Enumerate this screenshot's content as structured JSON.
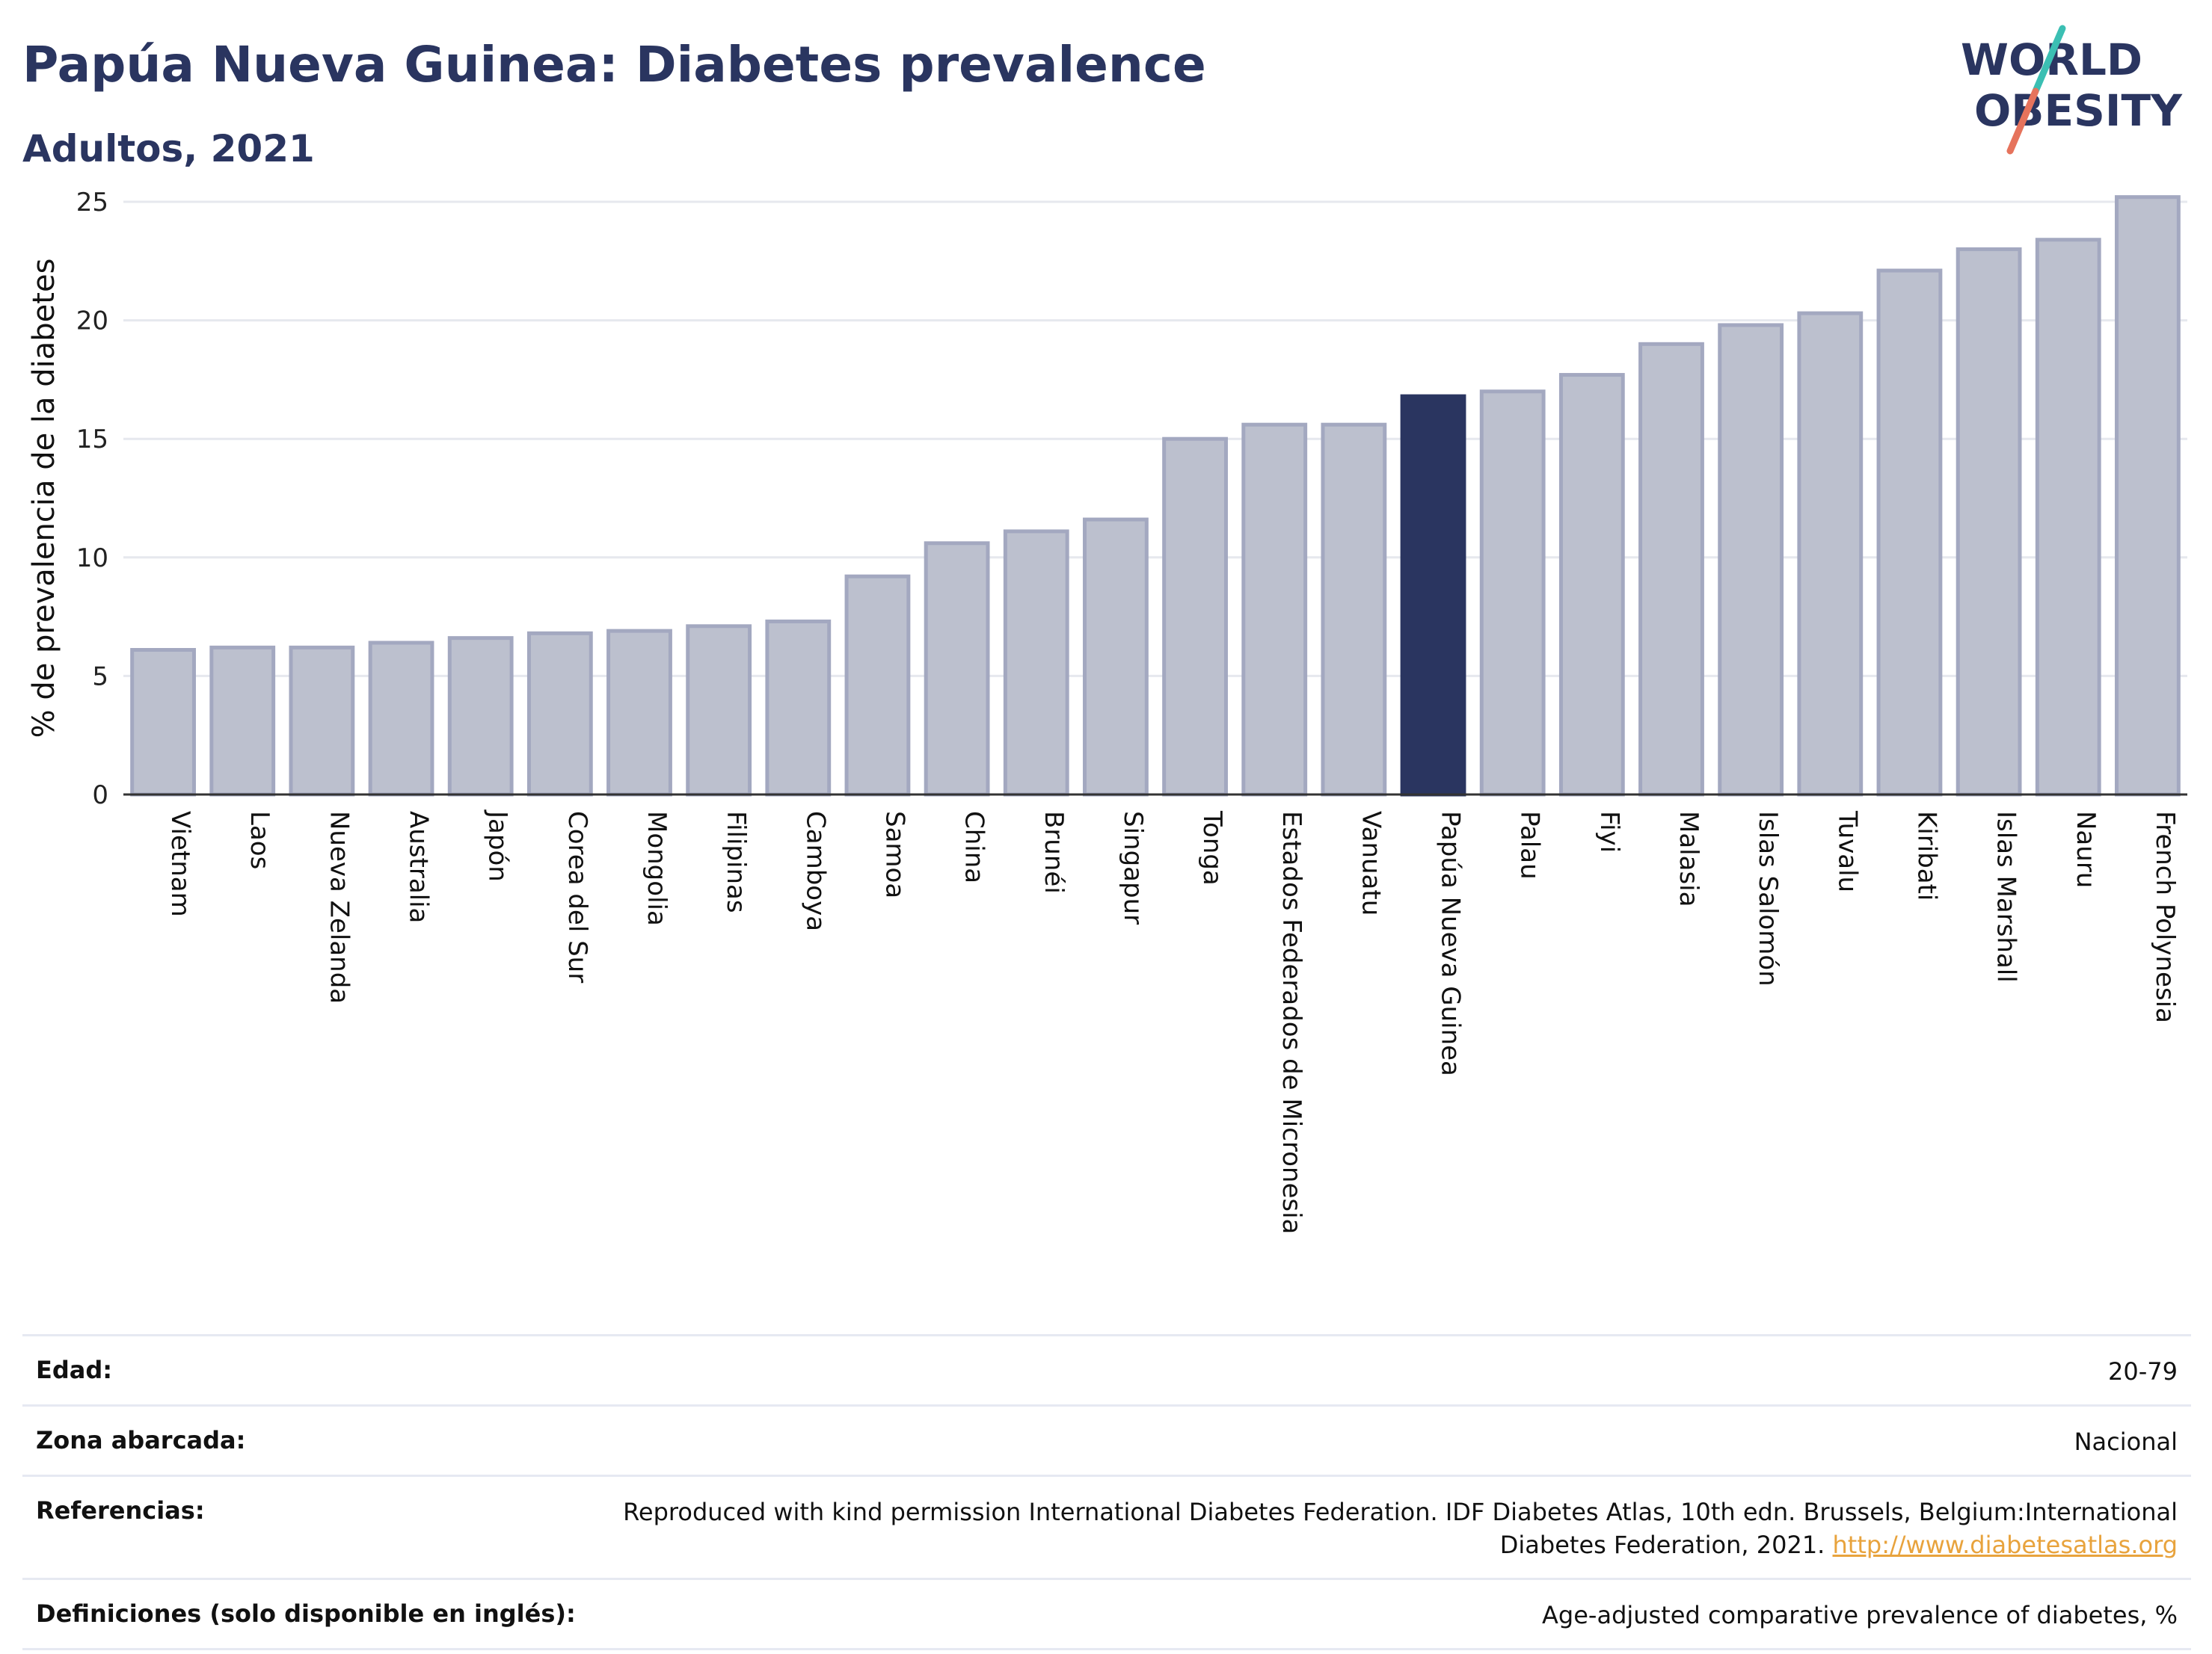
{
  "header": {
    "title": "Papúa Nueva Guinea: Diabetes prevalence",
    "subtitle": "Adultos, 2021"
  },
  "logo": {
    "line1": "WORLD",
    "line2": "OBESITY",
    "slash_colors": [
      "#3bbfb3",
      "#e6735c"
    ]
  },
  "colors": {
    "highlight": "#2a3560",
    "bar": "#bcc0ce",
    "bar_stroke": "#a3a8c0",
    "grid": "#e6e8ee",
    "title": "#2a3560"
  },
  "chart_data": {
    "type": "bar",
    "title": "Papúa Nueva Guinea: Diabetes prevalence",
    "subtitle": "Adultos, 2021",
    "ylabel": "% de prevalencia de la diabetes",
    "xlabel": "",
    "ylim": [
      0,
      25
    ],
    "yticks": [
      0,
      5,
      10,
      15,
      20,
      25
    ],
    "grid": true,
    "highlight": "Papúa Nueva Guinea",
    "categories": [
      "Vietnam",
      "Laos",
      "Nueva Zelanda",
      "Australia",
      "Japón",
      "Corea del Sur",
      "Mongolia",
      "Filipinas",
      "Camboya",
      "Samoa",
      "China",
      "Brunéi",
      "Singapur",
      "Tonga",
      "Estados Federados de Micronesia",
      "Vanuatu",
      "Papúa Nueva Guinea",
      "Palau",
      "Fiyi",
      "Malasia",
      "Islas Salomón",
      "Tuvalu",
      "Kiribati",
      "Islas Marshall",
      "Nauru",
      "French Polynesia"
    ],
    "values": [
      6.1,
      6.2,
      6.2,
      6.4,
      6.6,
      6.8,
      6.9,
      7.1,
      7.3,
      9.2,
      10.6,
      11.1,
      11.6,
      15.0,
      15.6,
      15.6,
      16.8,
      17.0,
      17.7,
      19.0,
      19.8,
      20.3,
      22.1,
      23.0,
      23.4,
      25.2
    ]
  },
  "meta": [
    {
      "key": "Edad:",
      "value": "20-79"
    },
    {
      "key": "Zona abarcada:",
      "value": "Nacional"
    },
    {
      "key": "Referencias:",
      "value": "Reproduced with kind permission International Diabetes Federation.  IDF Diabetes Atlas, 10th edn. Brussels, Belgium:International Diabetes Federation, 2021.",
      "link": "http://www.diabetesatlas.org"
    },
    {
      "key": "Definiciones (solo disponible en inglés):",
      "value": "Age-adjusted comparative prevalence of diabetes, %"
    }
  ]
}
